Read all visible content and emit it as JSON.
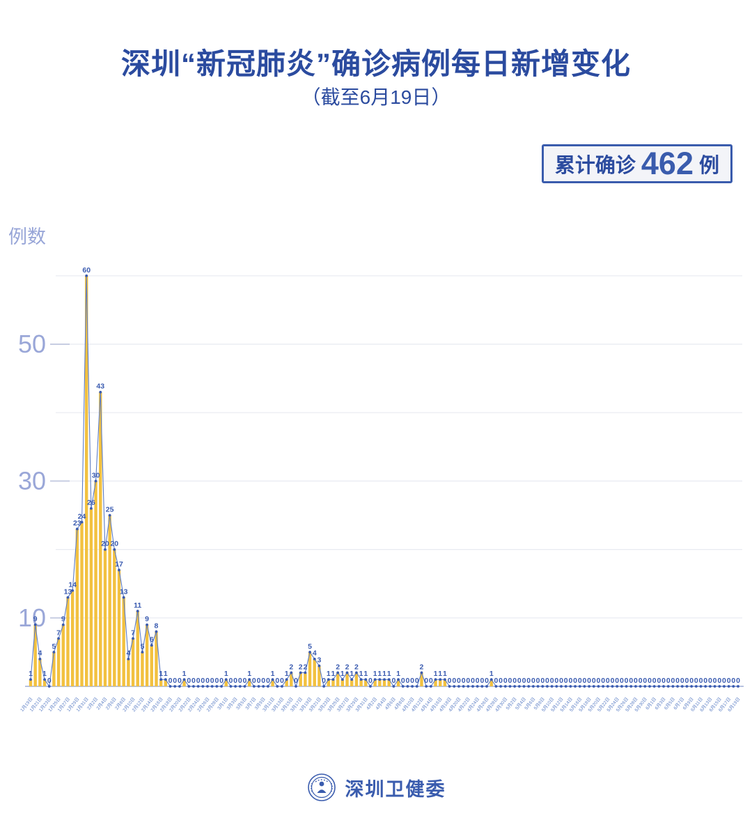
{
  "header": {
    "title": "深圳“新冠肺炎”确诊病例每日新增变化",
    "subtitle": "（截至6月19日）"
  },
  "badge": {
    "prefix": "累计确诊",
    "count": "462",
    "suffix": "例"
  },
  "footer": {
    "org": "深圳卫健委"
  },
  "theme": {
    "title_color": "#2B4B9F",
    "badge_border": "#3A5CAD",
    "badge_bg": "#F3F4F8"
  },
  "chart_data": {
    "type": "bar",
    "title": "深圳“新冠肺炎”确诊病例每日新增变化（截至6月19日）",
    "xlabel": "",
    "ylabel": "例数",
    "total_annotation": "累计确诊 462 例",
    "ylim": [
      0,
      62
    ],
    "y_ticks_labeled": [
      10,
      30,
      50
    ],
    "y_gridlines": [
      10,
      20,
      30,
      40,
      50,
      60
    ],
    "grid": true,
    "legend": "none",
    "xtick_every": 2,
    "categories": [
      "1月19日",
      "1月20日",
      "1月21日",
      "1月22日",
      "1月23日",
      "1月24日",
      "1月25日",
      "1月26日",
      "1月27日",
      "1月28日",
      "1月29日",
      "1月30日",
      "1月31日",
      "2月1日",
      "2月2日",
      "2月3日",
      "2月4日",
      "2月5日",
      "2月6日",
      "2月7日",
      "2月8日",
      "2月9日",
      "2月10日",
      "2月11日",
      "2月12日",
      "2月13日",
      "2月14日",
      "2月15日",
      "2月16日",
      "2月17日",
      "2月18日",
      "2月19日",
      "2月20日",
      "2月21日",
      "2月22日",
      "2月23日",
      "2月24日",
      "2月25日",
      "2月26日",
      "2月27日",
      "2月28日",
      "2月29日",
      "3月1日",
      "3月2日",
      "3月3日",
      "3月4日",
      "3月5日",
      "3月6日",
      "3月7日",
      "3月8日",
      "3月9日",
      "3月10日",
      "3月11日",
      "3月12日",
      "3月13日",
      "3月14日",
      "3月15日",
      "3月16日",
      "3月17日",
      "3月18日",
      "3月19日",
      "3月20日",
      "3月21日",
      "3月22日",
      "3月23日",
      "3月24日",
      "3月25日",
      "3月26日",
      "3月27日",
      "3月28日",
      "3月29日",
      "3月30日",
      "3月31日",
      "4月1日",
      "4月2日",
      "4月3日",
      "4月4日",
      "4月5日",
      "4月6日",
      "4月7日",
      "4月8日",
      "4月9日",
      "4月10日",
      "4月11日",
      "4月12日",
      "4月13日",
      "4月14日",
      "4月15日",
      "4月16日",
      "4月17日",
      "4月18日",
      "4月19日",
      "4月20日",
      "4月21日",
      "4月22日",
      "4月23日",
      "4月24日",
      "4月25日",
      "4月26日",
      "4月27日",
      "4月28日",
      "4月29日",
      "4月30日",
      "5月1日",
      "5月2日",
      "5月3日",
      "5月4日",
      "5月5日",
      "5月6日",
      "5月7日",
      "5月8日",
      "5月9日",
      "5月10日",
      "5月11日",
      "5月12日",
      "5月13日",
      "5月14日",
      "5月15日",
      "5月16日",
      "5月17日",
      "5月18日",
      "5月19日",
      "5月20日",
      "5月21日",
      "5月22日",
      "5月23日",
      "5月24日",
      "5月25日",
      "5月26日",
      "5月27日",
      "5月28日",
      "5月29日",
      "5月30日",
      "5月31日",
      "6月1日",
      "6月2日",
      "6月3日",
      "6月4日",
      "6月5日",
      "6月6日",
      "6月7日",
      "6月8日",
      "6月9日",
      "6月10日",
      "6月11日",
      "6月12日",
      "6月13日",
      "6月14日",
      "6月15日",
      "6月16日",
      "6月17日",
      "6月18日",
      "6月19日"
    ],
    "values": [
      1,
      9,
      4,
      1,
      0,
      5,
      7,
      9,
      13,
      14,
      23,
      24,
      60,
      26,
      30,
      43,
      20,
      25,
      20,
      17,
      13,
      4,
      7,
      11,
      5,
      9,
      6,
      8,
      1,
      1,
      0,
      0,
      0,
      1,
      0,
      0,
      0,
      0,
      0,
      0,
      0,
      0,
      1,
      0,
      0,
      0,
      0,
      1,
      0,
      0,
      0,
      0,
      1,
      0,
      0,
      1,
      2,
      0,
      2,
      2,
      5,
      4,
      3,
      0,
      1,
      1,
      2,
      1,
      2,
      1,
      2,
      1,
      1,
      0,
      1,
      1,
      1,
      1,
      0,
      1,
      0,
      0,
      0,
      0,
      2,
      0,
      0,
      1,
      1,
      1,
      0,
      0,
      0,
      0,
      0,
      0,
      0,
      0,
      0,
      1,
      0,
      0,
      0,
      0,
      0,
      0,
      0,
      0,
      0,
      0,
      0,
      0,
      0,
      0,
      0,
      0,
      0,
      0,
      0,
      0,
      0,
      0,
      0,
      0,
      0,
      0,
      0,
      0,
      0,
      0,
      0,
      0,
      0,
      0,
      0,
      0,
      0,
      0,
      0,
      0,
      0,
      0,
      0,
      0,
      0,
      0,
      0,
      0,
      0,
      0,
      0,
      0,
      0
    ],
    "colors": {
      "bar": "#F2C140",
      "line": "#5C7CC5",
      "dot": "#3A5BB0",
      "point_label": "#3A5BB0",
      "axis_label": "#9AA7D8",
      "tick_dash": "#C7CDE2",
      "grid": "#E8EAF1",
      "baseline": "#9FAED6",
      "x_label": "#5B7EC5"
    }
  }
}
